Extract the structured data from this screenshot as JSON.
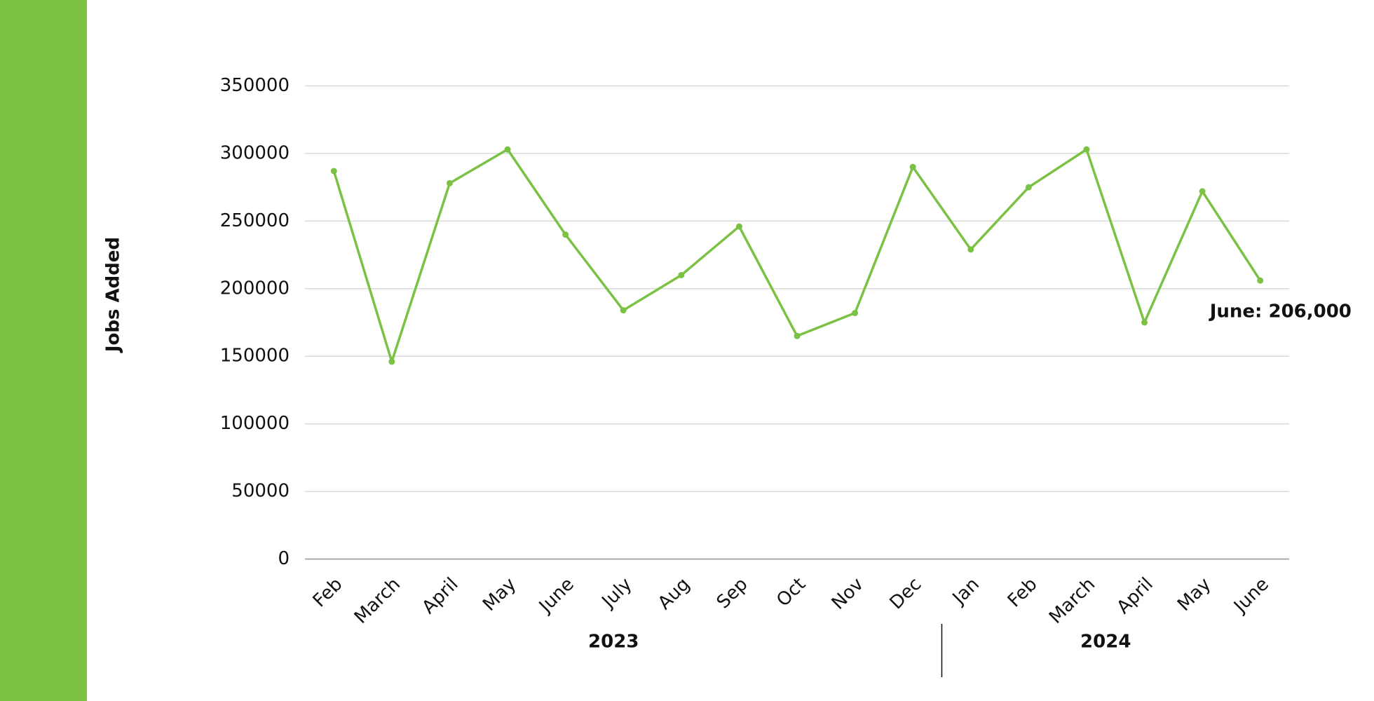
{
  "chart_data": {
    "type": "line",
    "y_label": "Jobs Added",
    "groups": [
      {
        "label": "2023",
        "categories": [
          "Feb",
          "March",
          "April",
          "May",
          "June",
          "July",
          "Aug",
          "Sep",
          "Oct",
          "Nov",
          "Dec"
        ]
      },
      {
        "label": "2024",
        "categories": [
          "Jan",
          "Feb",
          "March",
          "April",
          "May",
          "June"
        ]
      }
    ],
    "series": [
      {
        "name": "Jobs Added",
        "color": "#7bc143",
        "values": [
          287000,
          146000,
          278000,
          303000,
          240000,
          184000,
          210000,
          246000,
          165000,
          182000,
          290000,
          229000,
          275000,
          303000,
          175000,
          272000,
          206000
        ],
        "value_labels": [
          null,
          null,
          null,
          null,
          null,
          null,
          null,
          null,
          null,
          null,
          null,
          null,
          null,
          null,
          null,
          null,
          "June: 206,000"
        ]
      }
    ],
    "ylim": [
      0,
      350000
    ],
    "yticks": [
      0,
      50000,
      100000,
      150000,
      200000,
      250000,
      300000,
      350000
    ],
    "grid": true
  }
}
